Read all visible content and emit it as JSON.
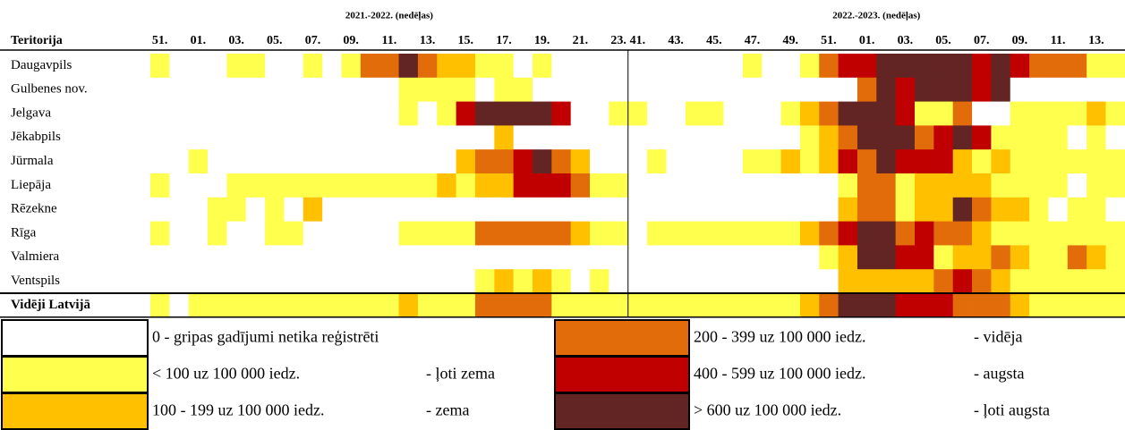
{
  "chart_data": {
    "type": "heatmap",
    "row_header": "Teritorija",
    "periods": [
      {
        "label": "2021.-2022. (nedēļas)",
        "start": 0,
        "end": 25
      },
      {
        "label": "2022.-2023. (nedēļas)",
        "start": 25,
        "end": 51
      }
    ],
    "categories": [
      "51.",
      null,
      "01.",
      null,
      "03.",
      null,
      "05.",
      null,
      "07.",
      null,
      "09.",
      null,
      "11.",
      null,
      "13.",
      null,
      "15.",
      null,
      "17.",
      null,
      "19.",
      null,
      "21.",
      null,
      "23.",
      "41.",
      null,
      "43.",
      null,
      "45.",
      null,
      "47.",
      null,
      "49.",
      null,
      "51.",
      null,
      "01.",
      null,
      "03.",
      null,
      "05.",
      null,
      "07.",
      null,
      "09.",
      null,
      "11.",
      null,
      "13.",
      null
    ],
    "series": [
      {
        "name": "Daugavpils",
        "values": [
          1,
          0,
          0,
          0,
          1,
          1,
          0,
          0,
          1,
          0,
          1,
          3,
          3,
          5,
          3,
          2,
          2,
          1,
          1,
          0,
          1,
          0,
          0,
          0,
          0,
          0,
          0,
          0,
          0,
          0,
          0,
          1,
          0,
          0,
          1,
          3,
          4,
          4,
          5,
          5,
          5,
          5,
          5,
          4,
          5,
          4,
          3,
          3,
          3,
          1,
          1
        ]
      },
      {
        "name": "Gulbenes nov.",
        "values": [
          0,
          0,
          0,
          0,
          0,
          0,
          0,
          0,
          0,
          0,
          0,
          0,
          0,
          1,
          1,
          1,
          1,
          0,
          1,
          1,
          0,
          0,
          0,
          0,
          0,
          0,
          0,
          0,
          0,
          0,
          0,
          0,
          0,
          0,
          0,
          0,
          0,
          3,
          5,
          4,
          5,
          5,
          5,
          4,
          5,
          0,
          0,
          0,
          0,
          0,
          0
        ]
      },
      {
        "name": "Jelgava",
        "values": [
          0,
          0,
          0,
          0,
          0,
          0,
          0,
          0,
          0,
          0,
          0,
          0,
          0,
          1,
          0,
          1,
          4,
          5,
          5,
          5,
          5,
          4,
          0,
          0,
          1,
          1,
          0,
          0,
          1,
          1,
          0,
          0,
          0,
          1,
          2,
          3,
          5,
          5,
          5,
          4,
          1,
          1,
          3,
          0,
          0,
          1,
          1,
          1,
          1,
          2,
          1
        ]
      },
      {
        "name": "Jēkabpils",
        "values": [
          0,
          0,
          0,
          0,
          0,
          0,
          0,
          0,
          0,
          0,
          0,
          0,
          0,
          0,
          0,
          0,
          0,
          0,
          2,
          0,
          0,
          0,
          0,
          0,
          0,
          0,
          0,
          0,
          0,
          0,
          0,
          0,
          0,
          0,
          1,
          2,
          3,
          5,
          5,
          5,
          3,
          4,
          5,
          4,
          1,
          1,
          1,
          1,
          0,
          1,
          0
        ]
      },
      {
        "name": "Jūrmala",
        "values": [
          0,
          0,
          1,
          0,
          0,
          0,
          0,
          0,
          0,
          0,
          0,
          0,
          0,
          0,
          0,
          0,
          2,
          3,
          3,
          4,
          5,
          3,
          2,
          0,
          0,
          0,
          1,
          0,
          0,
          0,
          0,
          1,
          1,
          2,
          1,
          2,
          4,
          3,
          5,
          4,
          4,
          4,
          2,
          1,
          2,
          1,
          1,
          1,
          1,
          1,
          1
        ]
      },
      {
        "name": "Liepāja",
        "values": [
          1,
          0,
          0,
          0,
          1,
          1,
          1,
          1,
          1,
          1,
          1,
          1,
          1,
          1,
          1,
          2,
          1,
          2,
          2,
          4,
          4,
          4,
          3,
          1,
          1,
          0,
          0,
          0,
          0,
          0,
          0,
          0,
          0,
          0,
          0,
          0,
          1,
          3,
          3,
          1,
          2,
          2,
          2,
          2,
          1,
          1,
          1,
          1,
          0,
          1,
          1
        ]
      },
      {
        "name": "Rēzekne",
        "values": [
          0,
          0,
          0,
          1,
          1,
          0,
          1,
          0,
          2,
          0,
          0,
          0,
          0,
          0,
          0,
          0,
          0,
          0,
          0,
          0,
          0,
          0,
          0,
          0,
          0,
          0,
          0,
          0,
          0,
          0,
          0,
          0,
          0,
          0,
          0,
          0,
          2,
          3,
          3,
          1,
          2,
          2,
          5,
          3,
          2,
          2,
          1,
          0,
          1,
          1,
          0
        ]
      },
      {
        "name": "Rīga",
        "values": [
          1,
          0,
          0,
          1,
          0,
          0,
          1,
          1,
          0,
          0,
          0,
          0,
          0,
          1,
          1,
          1,
          1,
          3,
          3,
          3,
          3,
          3,
          2,
          1,
          1,
          0,
          1,
          1,
          1,
          1,
          1,
          1,
          1,
          1,
          2,
          3,
          4,
          5,
          5,
          3,
          4,
          3,
          3,
          2,
          1,
          1,
          1,
          1,
          1,
          1,
          1
        ]
      },
      {
        "name": "Valmiera",
        "values": [
          0,
          0,
          0,
          0,
          0,
          0,
          0,
          0,
          0,
          0,
          0,
          0,
          0,
          0,
          0,
          0,
          0,
          0,
          0,
          0,
          0,
          0,
          0,
          0,
          0,
          0,
          0,
          0,
          0,
          0,
          0,
          0,
          0,
          0,
          0,
          1,
          2,
          5,
          5,
          4,
          4,
          1,
          2,
          2,
          3,
          2,
          1,
          1,
          3,
          2,
          1
        ]
      },
      {
        "name": "Ventspils",
        "values": [
          0,
          0,
          0,
          0,
          0,
          0,
          0,
          0,
          0,
          0,
          0,
          0,
          0,
          0,
          0,
          0,
          0,
          1,
          2,
          1,
          2,
          1,
          0,
          1,
          0,
          0,
          0,
          0,
          0,
          0,
          0,
          0,
          0,
          0,
          0,
          0,
          2,
          2,
          2,
          2,
          2,
          3,
          4,
          3,
          2,
          1,
          1,
          1,
          1,
          1,
          1
        ]
      },
      {
        "name": "Vidēji Latvijā",
        "values": [
          1,
          0,
          1,
          1,
          1,
          1,
          1,
          1,
          1,
          1,
          1,
          1,
          1,
          2,
          1,
          1,
          1,
          3,
          3,
          3,
          3,
          1,
          1,
          1,
          1,
          1,
          1,
          1,
          1,
          1,
          1,
          1,
          1,
          1,
          2,
          3,
          5,
          5,
          5,
          4,
          4,
          4,
          3,
          3,
          3,
          2,
          1,
          1,
          1,
          1,
          1
        ]
      }
    ],
    "legend": [
      {
        "color": "#ffffff",
        "range": "0 - gripas gadījumi netika reģistrēti"
      },
      {
        "color": "#ffff4d",
        "range": "<  100 uz 100 000 iedz.",
        "level": "- ļoti zema"
      },
      {
        "color": "#ffc000",
        "range": "100 - 199 uz 100 000 iedz.",
        "level": "- zema"
      },
      {
        "color": "#e36c0a",
        "range": "200 - 399 uz 100 000 iedz.",
        "level": "- vidēja"
      },
      {
        "color": "#c00000",
        "range": "400 - 599 uz 100 000 iedz.",
        "level": "- augsta"
      },
      {
        "color": "#632523",
        "range": ">  600 uz 100 000 iedz.",
        "level": "- ļoti augsta"
      }
    ]
  }
}
